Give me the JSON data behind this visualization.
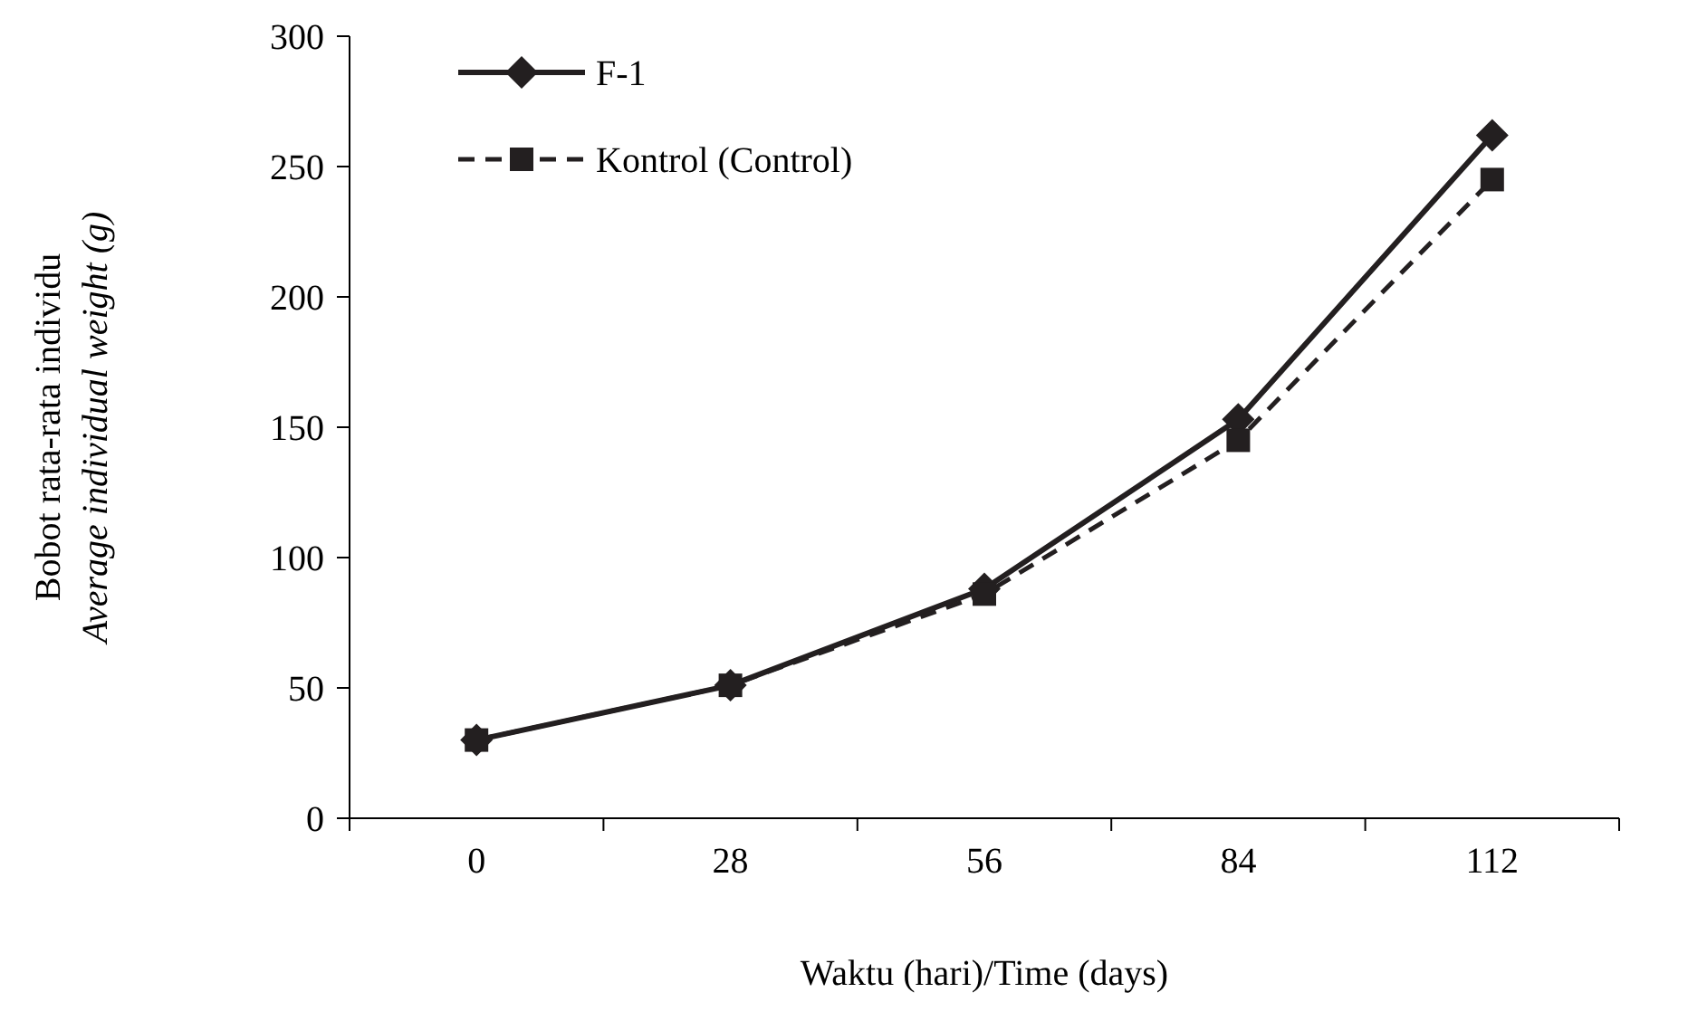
{
  "chart_data": {
    "type": "line",
    "xlabel": "Waktu (hari)/Time (days)",
    "ylabel": "Bobot rata-rata individu\nAverage individual weight (g)",
    "categories": [
      "0",
      "28",
      "56",
      "84",
      "112"
    ],
    "series": [
      {
        "name": "F-1",
        "color": "#231f20",
        "values": [
          30,
          51,
          88,
          153,
          262
        ],
        "marker": "diamond",
        "line_style": "solid"
      },
      {
        "name": "Kontrol (Control)",
        "color": "#231f20",
        "values": [
          30,
          51,
          86,
          145,
          245
        ],
        "marker": "square",
        "line_style": "dashed"
      }
    ],
    "ylim": [
      0,
      300
    ],
    "yticks": [
      0,
      50,
      100,
      150,
      200,
      250,
      300
    ],
    "grid": false,
    "legend": "top left"
  }
}
